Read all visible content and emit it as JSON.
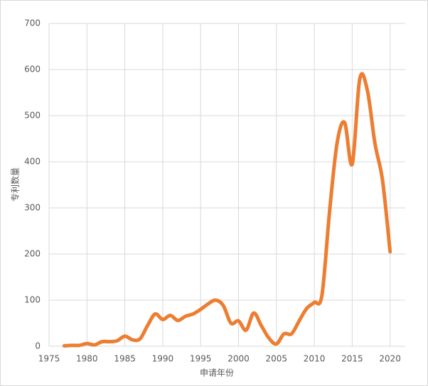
{
  "chart_data": {
    "type": "line",
    "x_label": "申请年份",
    "y_label": "专利数量",
    "x": [
      1977,
      1978,
      1979,
      1980,
      1981,
      1982,
      1983,
      1984,
      1985,
      1986,
      1987,
      1988,
      1989,
      1990,
      1991,
      1992,
      1993,
      1994,
      1995,
      1996,
      1997,
      1998,
      1999,
      2000,
      2001,
      2002,
      2003,
      2004,
      2005,
      2006,
      2007,
      2008,
      2009,
      2010,
      2011,
      2012,
      2013,
      2014,
      2015,
      2016,
      2017,
      2018,
      2019,
      2020
    ],
    "series": [
      {
        "color": "#ed7d31",
        "values": [
          1,
          2,
          2,
          6,
          3,
          10,
          10,
          12,
          22,
          14,
          16,
          45,
          70,
          58,
          67,
          56,
          65,
          70,
          80,
          92,
          100,
          88,
          50,
          55,
          35,
          72,
          45,
          18,
          5,
          27,
          27,
          55,
          82,
          95,
          110,
          290,
          440,
          485,
          395,
          580,
          555,
          440,
          360,
          205
        ]
      }
    ],
    "xlim": [
      1975,
      2022
    ],
    "xticks": [
      1975,
      1980,
      1985,
      1990,
      1995,
      2000,
      2005,
      2010,
      2015,
      2020
    ],
    "ylim": [
      0,
      700
    ],
    "yticks": [
      0,
      100,
      200,
      300,
      400,
      500,
      600,
      700
    ],
    "grid": true,
    "smooth": true
  }
}
